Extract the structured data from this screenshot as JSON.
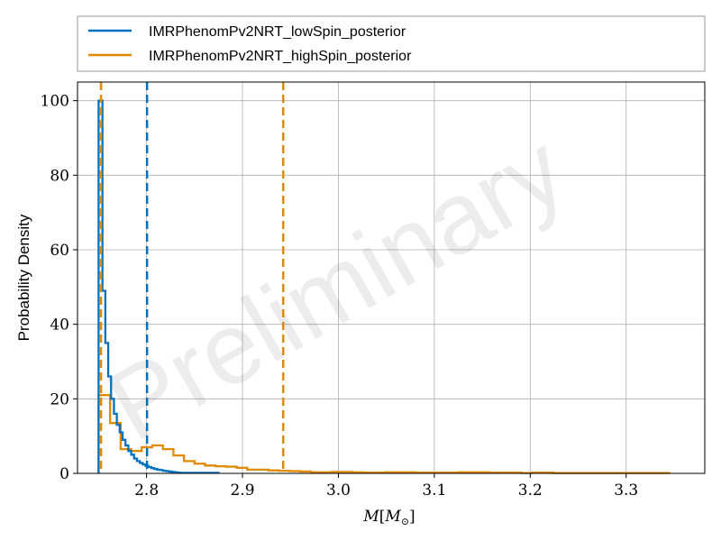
{
  "chart_data": {
    "type": "histogram",
    "watermark": "Preliminary",
    "xlabel": "M[M_⊙]",
    "xlabel_main": "M",
    "xlabel_sub": "⊙",
    "ylabel": "Probability Density",
    "xlim": [
      2.728,
      3.382
    ],
    "ylim": [
      0,
      105
    ],
    "xticks": [
      2.8,
      2.9,
      3.0,
      3.1,
      3.2,
      3.3
    ],
    "xtick_labels": [
      "2.8",
      "2.9",
      "3.0",
      "3.1",
      "3.2",
      "3.3"
    ],
    "yticks": [
      0,
      20,
      40,
      60,
      80,
      100
    ],
    "ytick_labels": [
      "0",
      "20",
      "40",
      "60",
      "80",
      "100"
    ],
    "grid": true,
    "legend_position": "top, above plot",
    "series": [
      {
        "name": "IMRPhenomPv2NRT_lowSpin_posterior",
        "color": "#0072bd",
        "edges": [
          2.75,
          2.754,
          2.757,
          2.76,
          2.763,
          2.766,
          2.769,
          2.772,
          2.775,
          2.778,
          2.781,
          2.784,
          2.787,
          2.79,
          2.793,
          2.796,
          2.799,
          2.802,
          2.805,
          2.808,
          2.811,
          2.814,
          2.817,
          2.82,
          2.823,
          2.826,
          2.829,
          2.832,
          2.835,
          2.875
        ],
        "values": [
          100,
          49,
          35,
          26,
          20,
          16,
          13,
          11,
          9,
          7.5,
          6,
          5,
          4,
          3.3,
          2.8,
          2.4,
          2,
          1.7,
          1.4,
          1.2,
          1,
          0.9,
          0.7,
          0.6,
          0.5,
          0.4,
          0.3,
          0.2,
          0.15
        ],
        "quantile_lines": [
          2.8005
        ]
      },
      {
        "name": "IMRPhenomPv2NRT_highSpin_posterior",
        "color": "#e08a00",
        "edges": [
          2.75,
          2.762,
          2.773,
          2.784,
          2.795,
          2.806,
          2.817,
          2.828,
          2.839,
          2.85,
          2.861,
          2.872,
          2.883,
          2.894,
          2.905,
          2.916,
          2.927,
          2.938,
          2.949,
          2.96,
          2.971,
          2.982,
          2.993,
          3.004,
          3.015,
          3.026,
          3.037,
          3.048,
          3.059,
          3.07,
          3.081,
          3.092,
          3.103,
          3.114,
          3.125,
          3.136,
          3.147,
          3.158,
          3.169,
          3.18,
          3.191,
          3.202,
          3.213,
          3.224,
          3.235,
          3.246,
          3.257,
          3.268,
          3.279,
          3.29,
          3.301,
          3.312,
          3.323,
          3.334,
          3.345
        ],
        "values": [
          21,
          13.5,
          6.5,
          6,
          7,
          7.5,
          6.5,
          4.8,
          3.3,
          2.6,
          2.1,
          1.9,
          1.8,
          1.5,
          1,
          1,
          0.8,
          0.7,
          0.6,
          0.5,
          0.3,
          0.3,
          0.4,
          0.4,
          0.3,
          0.2,
          0.2,
          0.3,
          0.3,
          0.3,
          0.2,
          0.2,
          0.2,
          0.2,
          0.3,
          0.3,
          0.3,
          0.2,
          0.2,
          0.2,
          0.1,
          0.2,
          0.2,
          0.1,
          0.1,
          0.1,
          0.1,
          0.1,
          0.1,
          0.1,
          0.1,
          0.1,
          0.1,
          0.1
        ],
        "quantile_lines": [
          2.7525,
          2.9425
        ]
      }
    ]
  }
}
